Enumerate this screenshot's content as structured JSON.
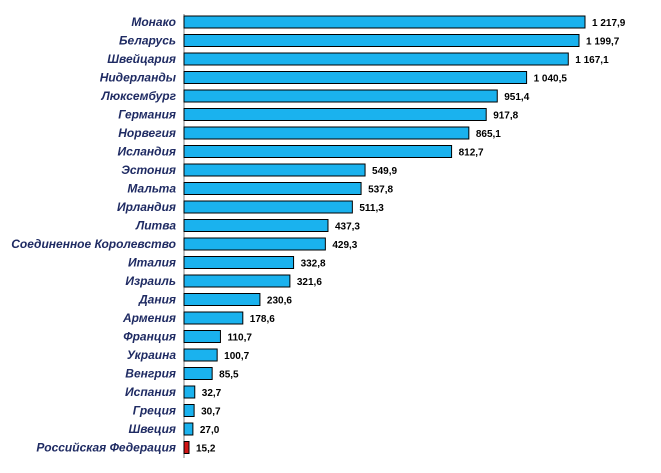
{
  "chart_data": {
    "type": "bar",
    "orientation": "horizontal",
    "title": "",
    "xlabel": "",
    "ylabel": "",
    "categories": [
      "Монако",
      "Беларусь",
      "Швейцария",
      "Нидерланды",
      "Люксембург",
      "Германия",
      "Норвегия",
      "Исландия",
      "Эстония",
      "Мальта",
      "Ирландия",
      "Литва",
      "Соединенное Королевство",
      "Италия",
      "Израиль",
      "Дания",
      "Армения",
      "Франция",
      "Украина",
      "Венгрия",
      "Испания",
      "Греция",
      "Швеция",
      "Российская Федерация"
    ],
    "values": [
      1217.9,
      1199.7,
      1167.1,
      1040.5,
      951.4,
      917.8,
      865.1,
      812.7,
      549.9,
      537.8,
      511.3,
      437.3,
      429.3,
      332.8,
      321.6,
      230.6,
      178.6,
      110.7,
      100.7,
      85.5,
      32.7,
      30.7,
      27.0,
      15.2
    ],
    "value_labels": [
      "1 217,9",
      "1 199,7",
      "1 167,1",
      "1 040,5",
      "951,4",
      "917,8",
      "865,1",
      "812,7",
      "549,9",
      "537,8",
      "511,3",
      "437,3",
      "429,3",
      "332,8",
      "321,6",
      "230,6",
      "178,6",
      "110,7",
      "100,7",
      "85,5",
      "32,7",
      "30,7",
      "27,0",
      "15,2"
    ],
    "highlight_category": "Российская Федерация",
    "xlim": [
      0,
      1217.9
    ],
    "grid": false,
    "legend": "none",
    "colors": {
      "bar": "#1ab2ee",
      "highlight": "#d21414",
      "bar_border": "#000000",
      "category_text": "#1f2b63",
      "value_text": "#000000"
    }
  }
}
